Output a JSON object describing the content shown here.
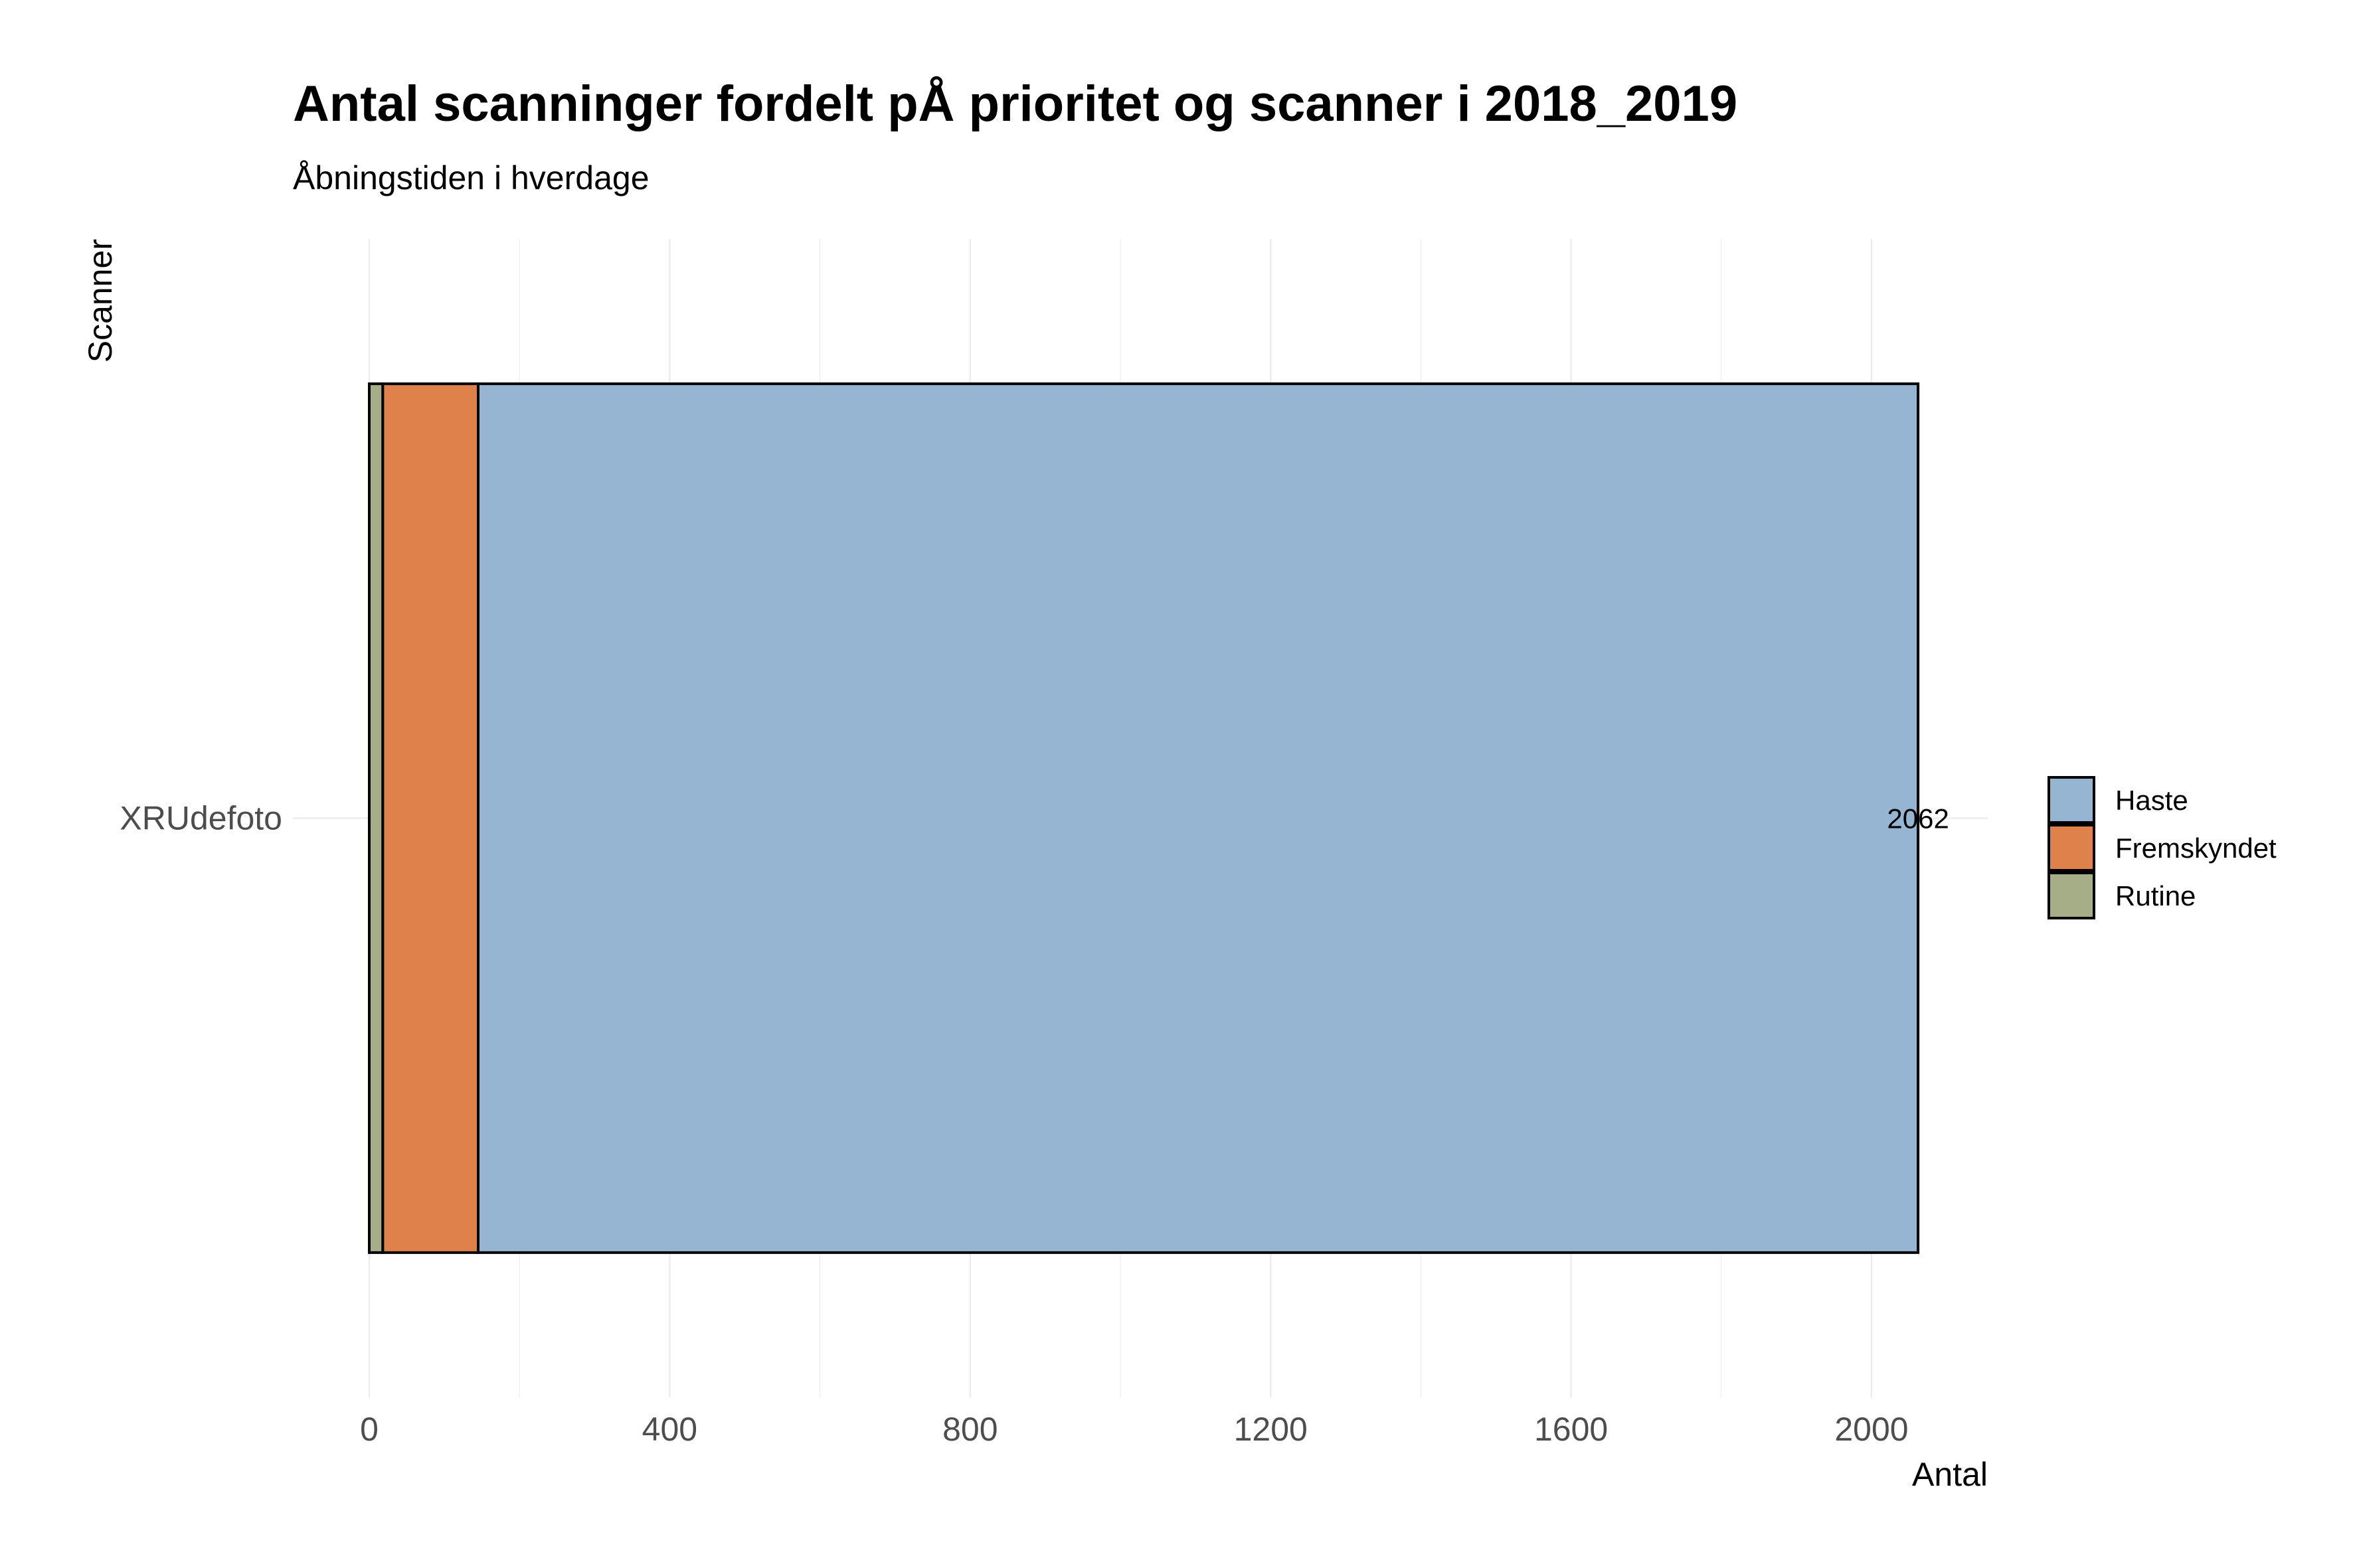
{
  "chart_data": {
    "type": "bar",
    "orientation": "horizontal",
    "stacked": true,
    "title": "Antal scanninger fordelt pÅ prioritet og scanner i 2018_2019",
    "subtitle": "Åbningstiden i hverdage",
    "xlabel": "Antal",
    "ylabel": "Scanner",
    "categories": [
      "XRUdefoto"
    ],
    "series": [
      {
        "name": "Rutine",
        "values": [
          18
        ],
        "color": "#a5ae87"
      },
      {
        "name": "Fremskyndet",
        "values": [
          127
        ],
        "color": "#de814a"
      },
      {
        "name": "Haste",
        "values": [
          1917
        ],
        "color": "#95b5d2"
      }
    ],
    "totals": [
      "2062"
    ],
    "legend_order": [
      "Haste",
      "Fremskyndet",
      "Rutine"
    ],
    "xlim": [
      0,
      2170
    ],
    "xticks": [
      0,
      400,
      800,
      1200,
      1600,
      2000
    ],
    "xtick_labels": [
      "0",
      "400",
      "800",
      "1200",
      "1600",
      "2000"
    ],
    "grid": true,
    "legend_position": "right"
  }
}
